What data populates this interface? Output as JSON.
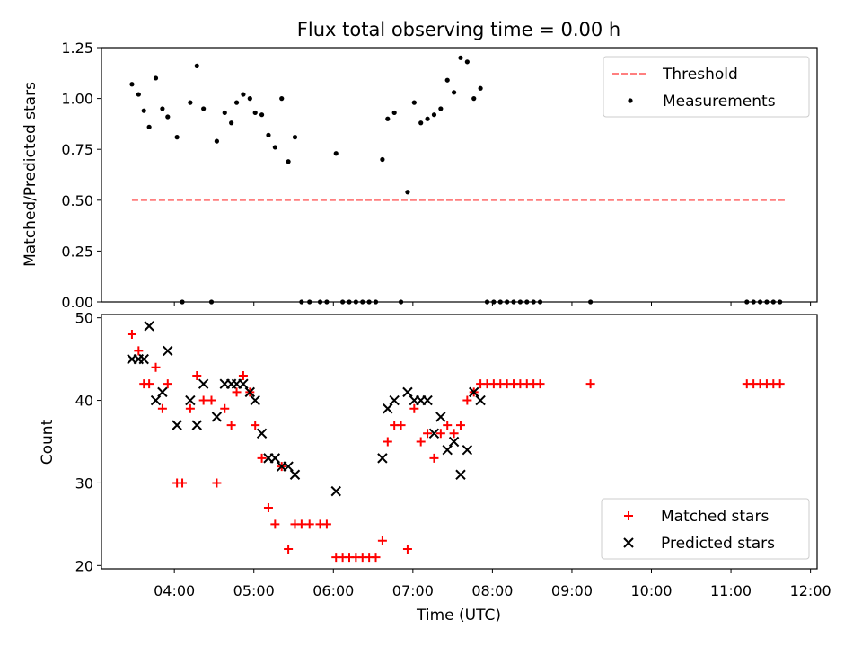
{
  "figure": {
    "title": "Flux total observing time = 0.00 h",
    "xlabel": "Time (UTC)"
  },
  "chart_data": [
    {
      "type": "scatter",
      "ylabel": "Matched/Predicted stars",
      "xlim": [
        "03:05",
        "12:05"
      ],
      "ylim": [
        0.0,
        1.25
      ],
      "yticks": [
        0.0,
        0.25,
        0.5,
        0.75,
        1.0,
        1.25
      ],
      "ytick_labels": [
        "0.00",
        "0.25",
        "0.50",
        "0.75",
        "1.00",
        "1.25"
      ],
      "legend": {
        "placement": "top-right",
        "entries": [
          "Threshold",
          "Measurements"
        ]
      },
      "threshold": {
        "name": "Threshold",
        "value": 0.5,
        "x": [
          "03:28",
          "11:42"
        ],
        "color": "#ff7f7f",
        "style": "dashed"
      },
      "series": [
        {
          "name": "Measurements",
          "marker": "dot",
          "color": "#000000",
          "points": [
            [
              "03:28",
              1.07
            ],
            [
              "03:33",
              1.02
            ],
            [
              "03:37",
              0.94
            ],
            [
              "03:41",
              0.86
            ],
            [
              "03:46",
              1.1
            ],
            [
              "03:51",
              0.95
            ],
            [
              "03:55",
              0.91
            ],
            [
              "04:02",
              0.81
            ],
            [
              "04:06",
              0.0
            ],
            [
              "04:12",
              0.98
            ],
            [
              "04:17",
              1.16
            ],
            [
              "04:22",
              0.95
            ],
            [
              "04:28",
              0.0
            ],
            [
              "04:32",
              0.79
            ],
            [
              "04:38",
              0.93
            ],
            [
              "04:43",
              0.88
            ],
            [
              "04:47",
              0.98
            ],
            [
              "04:52",
              1.02
            ],
            [
              "04:57",
              1.0
            ],
            [
              "05:01",
              0.93
            ],
            [
              "05:06",
              0.92
            ],
            [
              "05:11",
              0.82
            ],
            [
              "05:16",
              0.76
            ],
            [
              "05:21",
              1.0
            ],
            [
              "05:26",
              0.69
            ],
            [
              "05:31",
              0.81
            ],
            [
              "05:36",
              0.0
            ],
            [
              "05:42",
              0.0
            ],
            [
              "05:50",
              0.0
            ],
            [
              "05:55",
              0.0
            ],
            [
              "06:02",
              0.73
            ],
            [
              "06:07",
              0.0
            ],
            [
              "06:12",
              0.0
            ],
            [
              "06:17",
              0.0
            ],
            [
              "06:22",
              0.0
            ],
            [
              "06:27",
              0.0
            ],
            [
              "06:32",
              0.0
            ],
            [
              "06:37",
              0.7
            ],
            [
              "06:41",
              0.9
            ],
            [
              "06:46",
              0.93
            ],
            [
              "06:51",
              0.0
            ],
            [
              "06:56",
              0.54
            ],
            [
              "07:01",
              0.98
            ],
            [
              "07:06",
              0.88
            ],
            [
              "07:11",
              0.9
            ],
            [
              "07:16",
              0.92
            ],
            [
              "07:21",
              0.95
            ],
            [
              "07:26",
              1.09
            ],
            [
              "07:31",
              1.03
            ],
            [
              "07:36",
              1.2
            ],
            [
              "07:41",
              1.18
            ],
            [
              "07:46",
              1.0
            ],
            [
              "07:51",
              1.05
            ],
            [
              "07:56",
              0.0
            ],
            [
              "08:01",
              0.0
            ],
            [
              "08:06",
              0.0
            ],
            [
              "08:11",
              0.0
            ],
            [
              "08:16",
              0.0
            ],
            [
              "08:21",
              0.0
            ],
            [
              "08:26",
              0.0
            ],
            [
              "08:31",
              0.0
            ],
            [
              "08:36",
              0.0
            ],
            [
              "09:14",
              0.0
            ],
            [
              "11:12",
              0.0
            ],
            [
              "11:17",
              0.0
            ],
            [
              "11:22",
              0.0
            ],
            [
              "11:27",
              0.0
            ],
            [
              "11:32",
              0.0
            ],
            [
              "11:37",
              0.0
            ]
          ]
        }
      ]
    },
    {
      "type": "scatter",
      "ylabel": "Count",
      "xlim": [
        "03:05",
        "12:05"
      ],
      "ylim": [
        19.6,
        50.4
      ],
      "yticks": [
        20,
        30,
        40,
        50
      ],
      "ytick_labels": [
        "20",
        "30",
        "40",
        "50"
      ],
      "xticks": [
        "04:00",
        "05:00",
        "06:00",
        "07:00",
        "08:00",
        "09:00",
        "10:00",
        "11:00",
        "12:00"
      ],
      "legend": {
        "placement": "bottom-right",
        "entries": [
          "Matched stars",
          "Predicted stars"
        ]
      },
      "series": [
        {
          "name": "Matched stars",
          "marker": "plus",
          "color": "#ff0000",
          "points": [
            [
              "03:28",
              48
            ],
            [
              "03:33",
              46
            ],
            [
              "03:37",
              42
            ],
            [
              "03:41",
              42
            ],
            [
              "03:46",
              44
            ],
            [
              "03:51",
              39
            ],
            [
              "03:55",
              42
            ],
            [
              "04:02",
              30
            ],
            [
              "04:06",
              30
            ],
            [
              "04:12",
              39
            ],
            [
              "04:17",
              43
            ],
            [
              "04:22",
              40
            ],
            [
              "04:28",
              40
            ],
            [
              "04:32",
              30
            ],
            [
              "04:38",
              39
            ],
            [
              "04:43",
              37
            ],
            [
              "04:47",
              41
            ],
            [
              "04:52",
              43
            ],
            [
              "04:57",
              41
            ],
            [
              "05:01",
              37
            ],
            [
              "05:06",
              33
            ],
            [
              "05:11",
              27
            ],
            [
              "05:16",
              25
            ],
            [
              "05:21",
              32
            ],
            [
              "05:26",
              22
            ],
            [
              "05:31",
              25
            ],
            [
              "05:36",
              25
            ],
            [
              "05:42",
              25
            ],
            [
              "05:50",
              25
            ],
            [
              "05:55",
              25
            ],
            [
              "06:02",
              21
            ],
            [
              "06:07",
              21
            ],
            [
              "06:12",
              21
            ],
            [
              "06:17",
              21
            ],
            [
              "06:22",
              21
            ],
            [
              "06:27",
              21
            ],
            [
              "06:32",
              21
            ],
            [
              "06:37",
              23
            ],
            [
              "06:41",
              35
            ],
            [
              "06:46",
              37
            ],
            [
              "06:51",
              37
            ],
            [
              "06:56",
              22
            ],
            [
              "07:01",
              39
            ],
            [
              "07:06",
              35
            ],
            [
              "07:11",
              36
            ],
            [
              "07:16",
              33
            ],
            [
              "07:21",
              36
            ],
            [
              "07:26",
              37
            ],
            [
              "07:31",
              36
            ],
            [
              "07:36",
              37
            ],
            [
              "07:41",
              40
            ],
            [
              "07:46",
              41
            ],
            [
              "07:51",
              42
            ],
            [
              "07:56",
              42
            ],
            [
              "08:01",
              42
            ],
            [
              "08:06",
              42
            ],
            [
              "08:11",
              42
            ],
            [
              "08:16",
              42
            ],
            [
              "08:21",
              42
            ],
            [
              "08:26",
              42
            ],
            [
              "08:31",
              42
            ],
            [
              "08:36",
              42
            ],
            [
              "09:14",
              42
            ],
            [
              "11:12",
              42
            ],
            [
              "11:17",
              42
            ],
            [
              "11:22",
              42
            ],
            [
              "11:27",
              42
            ],
            [
              "11:32",
              42
            ],
            [
              "11:37",
              42
            ]
          ]
        },
        {
          "name": "Predicted stars",
          "marker": "x",
          "color": "#000000",
          "points": [
            [
              "03:28",
              45
            ],
            [
              "03:33",
              45
            ],
            [
              "03:37",
              45
            ],
            [
              "03:41",
              49
            ],
            [
              "03:46",
              40
            ],
            [
              "03:51",
              41
            ],
            [
              "03:55",
              46
            ],
            [
              "04:02",
              37
            ],
            [
              "04:12",
              40
            ],
            [
              "04:17",
              37
            ],
            [
              "04:22",
              42
            ],
            [
              "04:32",
              38
            ],
            [
              "04:38",
              42
            ],
            [
              "04:43",
              42
            ],
            [
              "04:47",
              42
            ],
            [
              "04:52",
              42
            ],
            [
              "04:57",
              41
            ],
            [
              "05:01",
              40
            ],
            [
              "05:06",
              36
            ],
            [
              "05:11",
              33
            ],
            [
              "05:16",
              33
            ],
            [
              "05:21",
              32
            ],
            [
              "05:26",
              32
            ],
            [
              "05:31",
              31
            ],
            [
              "06:02",
              29
            ],
            [
              "06:37",
              33
            ],
            [
              "06:41",
              39
            ],
            [
              "06:46",
              40
            ],
            [
              "06:56",
              41
            ],
            [
              "07:01",
              40
            ],
            [
              "07:06",
              40
            ],
            [
              "07:11",
              40
            ],
            [
              "07:16",
              36
            ],
            [
              "07:21",
              38
            ],
            [
              "07:26",
              34
            ],
            [
              "07:31",
              35
            ],
            [
              "07:36",
              31
            ],
            [
              "07:41",
              34
            ],
            [
              "07:46",
              41
            ],
            [
              "07:51",
              40
            ]
          ]
        }
      ]
    }
  ]
}
